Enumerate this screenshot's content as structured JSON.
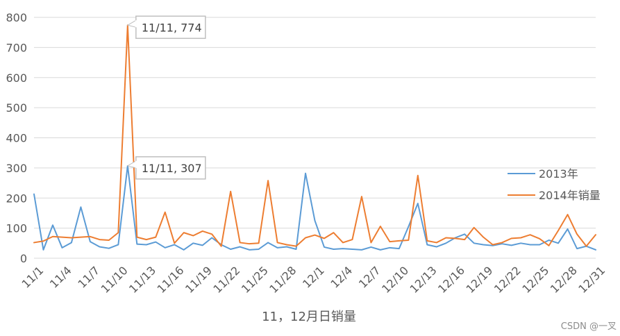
{
  "chart_data": {
    "type": "line",
    "xlabel": "11，12月日销量",
    "ylabel": "",
    "ylim": [
      0,
      800
    ],
    "yticks": [
      0,
      100,
      200,
      300,
      400,
      500,
      600,
      700,
      800
    ],
    "grid": true,
    "legend_position": "right",
    "x": [
      "11/1",
      "11/2",
      "11/3",
      "11/4",
      "11/5",
      "11/6",
      "11/7",
      "11/8",
      "11/9",
      "11/10",
      "11/11",
      "11/12",
      "11/13",
      "11/14",
      "11/15",
      "11/16",
      "11/17",
      "11/18",
      "11/19",
      "11/20",
      "11/21",
      "11/22",
      "11/23",
      "11/24",
      "11/25",
      "11/26",
      "11/27",
      "11/28",
      "11/29",
      "11/30",
      "12/1",
      "12/2",
      "12/3",
      "12/4",
      "12/5",
      "12/6",
      "12/7",
      "12/8",
      "12/9",
      "12/10",
      "12/11",
      "12/12",
      "12/13",
      "12/14",
      "12/15",
      "12/16",
      "12/17",
      "12/18",
      "12/19",
      "12/20",
      "12/21",
      "12/22",
      "12/23",
      "12/24",
      "12/25",
      "12/26",
      "12/27",
      "12/28",
      "12/29",
      "12/30",
      "12/31"
    ],
    "x_tick_labels": [
      "11/1",
      "11/4",
      "11/7",
      "11/10",
      "11/13",
      "11/16",
      "11/19",
      "11/22",
      "11/25",
      "11/28",
      "12/1",
      "12/4",
      "12/7",
      "12/10",
      "12/13",
      "12/16",
      "12/19",
      "12/22",
      "12/25",
      "12/28",
      "12/31"
    ],
    "series": [
      {
        "name": "2013年",
        "color": "#5B9BD5",
        "values": [
          213,
          28,
          110,
          35,
          52,
          170,
          55,
          38,
          33,
          45,
          307,
          47,
          45,
          54,
          35,
          45,
          28,
          50,
          43,
          68,
          45,
          30,
          38,
          28,
          30,
          52,
          35,
          38,
          30,
          282,
          125,
          37,
          30,
          32,
          30,
          28,
          37,
          28,
          35,
          32,
          105,
          182,
          45,
          38,
          50,
          68,
          80,
          50,
          45,
          42,
          48,
          43,
          50,
          45,
          45,
          60,
          50,
          97,
          32,
          40,
          28
        ],
        "annotation": {
          "index": 10,
          "label": "11/11, 307"
        }
      },
      {
        "name": "2014年销量",
        "color": "#ED7D31",
        "values": [
          52,
          57,
          72,
          70,
          68,
          70,
          72,
          62,
          60,
          85,
          774,
          70,
          62,
          70,
          153,
          50,
          85,
          75,
          90,
          80,
          40,
          222,
          52,
          48,
          50,
          258,
          52,
          45,
          40,
          68,
          77,
          66,
          85,
          52,
          62,
          205,
          52,
          106,
          55,
          58,
          60,
          275,
          58,
          52,
          68,
          66,
          62,
          102,
          70,
          45,
          52,
          66,
          68,
          78,
          65,
          42,
          92,
          145,
          80,
          40,
          78
        ],
        "annotation": {
          "index": 10,
          "label": "11/11, 774"
        }
      }
    ]
  },
  "watermark": "CSDN @一叉"
}
